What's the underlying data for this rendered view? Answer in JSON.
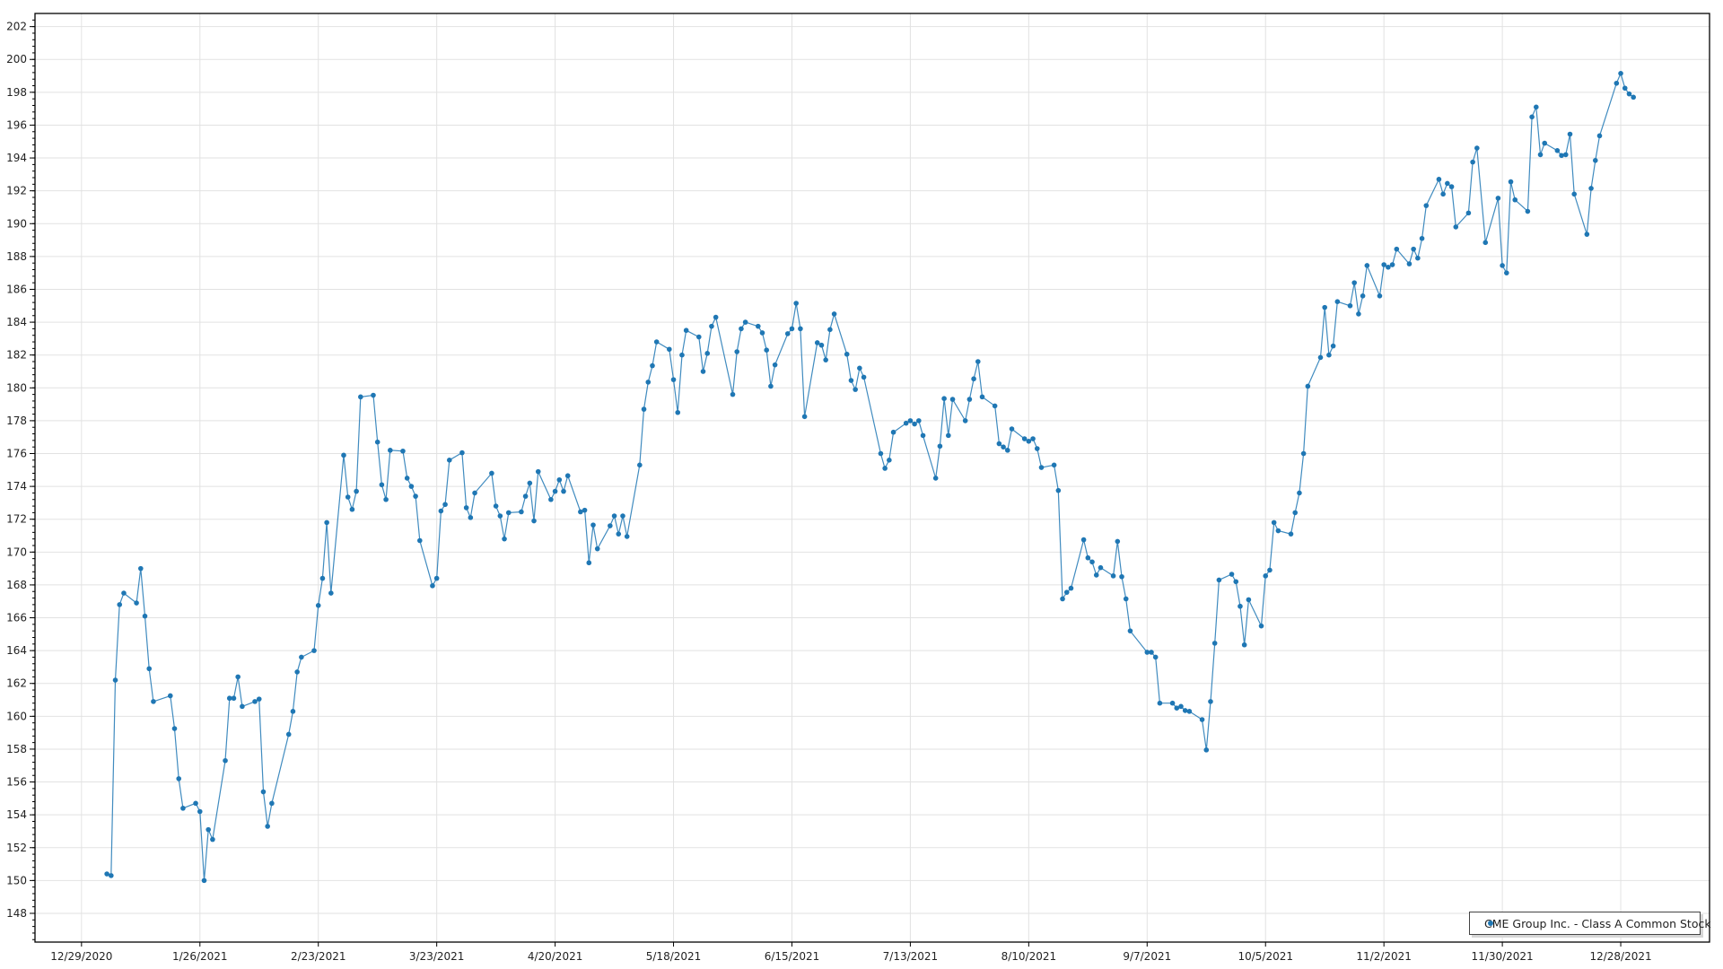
{
  "chart_data": {
    "type": "line",
    "title": "",
    "xlabel": "",
    "ylabel": "",
    "xlim": [
      "2020-12-18",
      "2022-01-18"
    ],
    "ylim": [
      146.25,
      202.8
    ],
    "grid": true,
    "legend_position": "bottom-right",
    "colors": {
      "series": "#1f77b4",
      "grid": "#e2e2e2",
      "axis": "#000000"
    },
    "y_ticks": [
      "148",
      "150",
      "152",
      "154",
      "156",
      "158",
      "160",
      "162",
      "164",
      "166",
      "168",
      "170",
      "172",
      "174",
      "176",
      "178",
      "180",
      "182",
      "184",
      "186",
      "188",
      "190",
      "192",
      "194",
      "196",
      "198",
      "200",
      "202"
    ],
    "x_ticks": [
      {
        "date": "2020-12-29",
        "label": "12/29/2020"
      },
      {
        "date": "2021-01-26",
        "label": "1/26/2021"
      },
      {
        "date": "2021-02-23",
        "label": "2/23/2021"
      },
      {
        "date": "2021-03-23",
        "label": "3/23/2021"
      },
      {
        "date": "2021-04-20",
        "label": "4/20/2021"
      },
      {
        "date": "2021-05-18",
        "label": "5/18/2021"
      },
      {
        "date": "2021-06-15",
        "label": "6/15/2021"
      },
      {
        "date": "2021-07-13",
        "label": "7/13/2021"
      },
      {
        "date": "2021-08-10",
        "label": "8/10/2021"
      },
      {
        "date": "2021-09-07",
        "label": "9/7/2021"
      },
      {
        "date": "2021-10-05",
        "label": "10/5/2021"
      },
      {
        "date": "2021-11-02",
        "label": "11/2/2021"
      },
      {
        "date": "2021-11-30",
        "label": "11/30/2021"
      },
      {
        "date": "2021-12-28",
        "label": "12/28/2021"
      }
    ],
    "series": [
      {
        "name": "CME Group Inc. - Class A Common Stock",
        "points": [
          [
            "2021-01-04",
            150.4
          ],
          [
            "2021-01-05",
            150.3
          ],
          [
            "2021-01-06",
            162.2
          ],
          [
            "2021-01-07",
            166.8
          ],
          [
            "2021-01-08",
            167.5
          ],
          [
            "2021-01-11",
            166.9
          ],
          [
            "2021-01-12",
            169.0
          ],
          [
            "2021-01-13",
            166.1
          ],
          [
            "2021-01-14",
            162.9
          ],
          [
            "2021-01-15",
            160.9
          ],
          [
            "2021-01-19",
            161.25
          ],
          [
            "2021-01-20",
            159.25
          ],
          [
            "2021-01-21",
            156.2
          ],
          [
            "2021-01-22",
            154.4
          ],
          [
            "2021-01-25",
            154.7
          ],
          [
            "2021-01-26",
            154.2
          ],
          [
            "2021-01-27",
            150.0
          ],
          [
            "2021-01-28",
            153.1
          ],
          [
            "2021-01-29",
            152.5
          ],
          [
            "2021-02-01",
            157.3
          ],
          [
            "2021-02-02",
            161.1
          ],
          [
            "2021-02-03",
            161.1
          ],
          [
            "2021-02-04",
            162.4
          ],
          [
            "2021-02-05",
            160.6
          ],
          [
            "2021-02-08",
            160.9
          ],
          [
            "2021-02-09",
            161.05
          ],
          [
            "2021-02-10",
            155.4
          ],
          [
            "2021-02-11",
            153.3
          ],
          [
            "2021-02-12",
            154.7
          ],
          [
            "2021-02-16",
            158.9
          ],
          [
            "2021-02-17",
            160.3
          ],
          [
            "2021-02-18",
            162.7
          ],
          [
            "2021-02-19",
            163.6
          ],
          [
            "2021-02-22",
            164.0
          ],
          [
            "2021-02-23",
            166.75
          ],
          [
            "2021-02-24",
            168.4
          ],
          [
            "2021-02-25",
            171.8
          ],
          [
            "2021-02-26",
            167.5
          ],
          [
            "2021-03-01",
            175.9
          ],
          [
            "2021-03-02",
            173.35
          ],
          [
            "2021-03-03",
            172.6
          ],
          [
            "2021-03-04",
            173.7
          ],
          [
            "2021-03-05",
            179.45
          ],
          [
            "2021-03-08",
            179.55
          ],
          [
            "2021-03-09",
            176.7
          ],
          [
            "2021-03-10",
            174.1
          ],
          [
            "2021-03-11",
            173.2
          ],
          [
            "2021-03-12",
            176.2
          ],
          [
            "2021-03-15",
            176.15
          ],
          [
            "2021-03-16",
            174.5
          ],
          [
            "2021-03-17",
            174.0
          ],
          [
            "2021-03-18",
            173.4
          ],
          [
            "2021-03-19",
            170.7
          ],
          [
            "2021-03-22",
            167.95
          ],
          [
            "2021-03-23",
            168.4
          ],
          [
            "2021-03-24",
            172.5
          ],
          [
            "2021-03-25",
            172.9
          ],
          [
            "2021-03-26",
            175.6
          ],
          [
            "2021-03-29",
            176.05
          ],
          [
            "2021-03-30",
            172.7
          ],
          [
            "2021-03-31",
            172.1
          ],
          [
            "2021-04-01",
            173.6
          ],
          [
            "2021-04-05",
            174.8
          ],
          [
            "2021-04-06",
            172.8
          ],
          [
            "2021-04-07",
            172.2
          ],
          [
            "2021-04-08",
            170.8
          ],
          [
            "2021-04-09",
            172.4
          ],
          [
            "2021-04-12",
            172.45
          ],
          [
            "2021-04-13",
            173.4
          ],
          [
            "2021-04-14",
            174.2
          ],
          [
            "2021-04-15",
            171.9
          ],
          [
            "2021-04-16",
            174.9
          ],
          [
            "2021-04-19",
            173.2
          ],
          [
            "2021-04-20",
            173.7
          ],
          [
            "2021-04-21",
            174.4
          ],
          [
            "2021-04-22",
            173.7
          ],
          [
            "2021-04-23",
            174.65
          ],
          [
            "2021-04-26",
            172.45
          ],
          [
            "2021-04-27",
            172.55
          ],
          [
            "2021-04-28",
            169.35
          ],
          [
            "2021-04-29",
            171.65
          ],
          [
            "2021-04-30",
            170.2
          ],
          [
            "2021-05-03",
            171.6
          ],
          [
            "2021-05-04",
            172.2
          ],
          [
            "2021-05-05",
            171.1
          ],
          [
            "2021-05-06",
            172.2
          ],
          [
            "2021-05-07",
            170.95
          ],
          [
            "2021-05-10",
            175.3
          ],
          [
            "2021-05-11",
            178.7
          ],
          [
            "2021-05-12",
            180.35
          ],
          [
            "2021-05-13",
            181.35
          ],
          [
            "2021-05-14",
            182.8
          ],
          [
            "2021-05-17",
            182.35
          ],
          [
            "2021-05-18",
            180.5
          ],
          [
            "2021-05-19",
            178.5
          ],
          [
            "2021-05-20",
            182.0
          ],
          [
            "2021-05-21",
            183.5
          ],
          [
            "2021-05-24",
            183.1
          ],
          [
            "2021-05-25",
            181.0
          ],
          [
            "2021-05-26",
            182.1
          ],
          [
            "2021-05-27",
            183.75
          ],
          [
            "2021-05-28",
            184.3
          ],
          [
            "2021-06-01",
            179.6
          ],
          [
            "2021-06-02",
            182.2
          ],
          [
            "2021-06-03",
            183.6
          ],
          [
            "2021-06-04",
            184.0
          ],
          [
            "2021-06-07",
            183.75
          ],
          [
            "2021-06-08",
            183.35
          ],
          [
            "2021-06-09",
            182.3
          ],
          [
            "2021-06-10",
            180.1
          ],
          [
            "2021-06-11",
            181.4
          ],
          [
            "2021-06-14",
            183.3
          ],
          [
            "2021-06-15",
            183.6
          ],
          [
            "2021-06-16",
            185.15
          ],
          [
            "2021-06-17",
            183.6
          ],
          [
            "2021-06-18",
            178.25
          ],
          [
            "2021-06-21",
            182.75
          ],
          [
            "2021-06-22",
            182.6
          ],
          [
            "2021-06-23",
            181.7
          ],
          [
            "2021-06-24",
            183.55
          ],
          [
            "2021-06-25",
            184.5
          ],
          [
            "2021-06-28",
            182.05
          ],
          [
            "2021-06-29",
            180.45
          ],
          [
            "2021-06-30",
            179.9
          ],
          [
            "2021-07-01",
            181.2
          ],
          [
            "2021-07-02",
            180.65
          ],
          [
            "2021-07-06",
            176.0
          ],
          [
            "2021-07-07",
            175.1
          ],
          [
            "2021-07-08",
            175.6
          ],
          [
            "2021-07-09",
            177.3
          ],
          [
            "2021-07-12",
            177.85
          ],
          [
            "2021-07-13",
            178.0
          ],
          [
            "2021-07-14",
            177.8
          ],
          [
            "2021-07-15",
            178.0
          ],
          [
            "2021-07-16",
            177.1
          ],
          [
            "2021-07-19",
            174.5
          ],
          [
            "2021-07-20",
            176.45
          ],
          [
            "2021-07-21",
            179.35
          ],
          [
            "2021-07-22",
            177.1
          ],
          [
            "2021-07-23",
            179.3
          ],
          [
            "2021-07-26",
            178.0
          ],
          [
            "2021-07-27",
            179.3
          ],
          [
            "2021-07-28",
            180.55
          ],
          [
            "2021-07-29",
            181.6
          ],
          [
            "2021-07-30",
            179.45
          ],
          [
            "2021-08-02",
            178.9
          ],
          [
            "2021-08-03",
            176.6
          ],
          [
            "2021-08-04",
            176.4
          ],
          [
            "2021-08-05",
            176.2
          ],
          [
            "2021-08-06",
            177.5
          ],
          [
            "2021-08-09",
            176.9
          ],
          [
            "2021-08-10",
            176.75
          ],
          [
            "2021-08-11",
            176.9
          ],
          [
            "2021-08-12",
            176.3
          ],
          [
            "2021-08-13",
            175.15
          ],
          [
            "2021-08-16",
            175.3
          ],
          [
            "2021-08-17",
            173.75
          ],
          [
            "2021-08-18",
            167.15
          ],
          [
            "2021-08-19",
            167.55
          ],
          [
            "2021-08-20",
            167.8
          ],
          [
            "2021-08-23",
            170.75
          ],
          [
            "2021-08-24",
            169.65
          ],
          [
            "2021-08-25",
            169.4
          ],
          [
            "2021-08-26",
            168.6
          ],
          [
            "2021-08-27",
            169.05
          ],
          [
            "2021-08-30",
            168.55
          ],
          [
            "2021-08-31",
            170.65
          ],
          [
            "2021-09-01",
            168.5
          ],
          [
            "2021-09-02",
            167.15
          ],
          [
            "2021-09-03",
            165.2
          ],
          [
            "2021-09-07",
            163.9
          ],
          [
            "2021-09-08",
            163.9
          ],
          [
            "2021-09-09",
            163.6
          ],
          [
            "2021-09-10",
            160.8
          ],
          [
            "2021-09-13",
            160.8
          ],
          [
            "2021-09-14",
            160.5
          ],
          [
            "2021-09-15",
            160.6
          ],
          [
            "2021-09-16",
            160.35
          ],
          [
            "2021-09-17",
            160.3
          ],
          [
            "2021-09-20",
            159.8
          ],
          [
            "2021-09-21",
            157.95
          ],
          [
            "2021-09-22",
            160.9
          ],
          [
            "2021-09-23",
            164.45
          ],
          [
            "2021-09-24",
            168.3
          ],
          [
            "2021-09-27",
            168.65
          ],
          [
            "2021-09-28",
            168.2
          ],
          [
            "2021-09-29",
            166.7
          ],
          [
            "2021-09-30",
            164.35
          ],
          [
            "2021-10-01",
            167.1
          ],
          [
            "2021-10-04",
            165.5
          ],
          [
            "2021-10-05",
            168.55
          ],
          [
            "2021-10-06",
            168.9
          ],
          [
            "2021-10-07",
            171.8
          ],
          [
            "2021-10-08",
            171.3
          ],
          [
            "2021-10-11",
            171.1
          ],
          [
            "2021-10-12",
            172.4
          ],
          [
            "2021-10-13",
            173.6
          ],
          [
            "2021-10-14",
            176.0
          ],
          [
            "2021-10-15",
            180.1
          ],
          [
            "2021-10-18",
            181.85
          ],
          [
            "2021-10-19",
            184.9
          ],
          [
            "2021-10-20",
            182.0
          ],
          [
            "2021-10-21",
            182.55
          ],
          [
            "2021-10-22",
            185.25
          ],
          [
            "2021-10-25",
            185.0
          ],
          [
            "2021-10-26",
            186.4
          ],
          [
            "2021-10-27",
            184.5
          ],
          [
            "2021-10-28",
            185.6
          ],
          [
            "2021-10-29",
            187.45
          ],
          [
            "2021-11-01",
            185.6
          ],
          [
            "2021-11-02",
            187.5
          ],
          [
            "2021-11-03",
            187.35
          ],
          [
            "2021-11-04",
            187.5
          ],
          [
            "2021-11-05",
            188.45
          ],
          [
            "2021-11-08",
            187.55
          ],
          [
            "2021-11-09",
            188.45
          ],
          [
            "2021-11-10",
            187.9
          ],
          [
            "2021-11-11",
            189.1
          ],
          [
            "2021-11-12",
            191.1
          ],
          [
            "2021-11-15",
            192.7
          ],
          [
            "2021-11-16",
            191.8
          ],
          [
            "2021-11-17",
            192.45
          ],
          [
            "2021-11-18",
            192.25
          ],
          [
            "2021-11-19",
            189.8
          ],
          [
            "2021-11-22",
            190.65
          ],
          [
            "2021-11-23",
            193.75
          ],
          [
            "2021-11-24",
            194.6
          ],
          [
            "2021-11-26",
            188.85
          ],
          [
            "2021-11-29",
            191.55
          ],
          [
            "2021-11-30",
            187.45
          ],
          [
            "2021-12-01",
            187.0
          ],
          [
            "2021-12-02",
            192.55
          ],
          [
            "2021-12-03",
            191.45
          ],
          [
            "2021-12-06",
            190.75
          ],
          [
            "2021-12-07",
            196.5
          ],
          [
            "2021-12-08",
            197.1
          ],
          [
            "2021-12-09",
            194.2
          ],
          [
            "2021-12-10",
            194.9
          ],
          [
            "2021-12-13",
            194.45
          ],
          [
            "2021-12-14",
            194.15
          ],
          [
            "2021-12-15",
            194.2
          ],
          [
            "2021-12-16",
            195.45
          ],
          [
            "2021-12-17",
            191.8
          ],
          [
            "2021-12-20",
            189.35
          ],
          [
            "2021-12-21",
            192.15
          ],
          [
            "2021-12-22",
            193.85
          ],
          [
            "2021-12-23",
            195.35
          ],
          [
            "2021-12-27",
            198.55
          ],
          [
            "2021-12-28",
            199.15
          ],
          [
            "2021-12-29",
            198.25
          ],
          [
            "2021-12-30",
            197.9
          ],
          [
            "2021-12-31",
            197.7
          ]
        ]
      }
    ]
  },
  "legend": {
    "label": "CME Group Inc. - Class A Common Stock"
  }
}
